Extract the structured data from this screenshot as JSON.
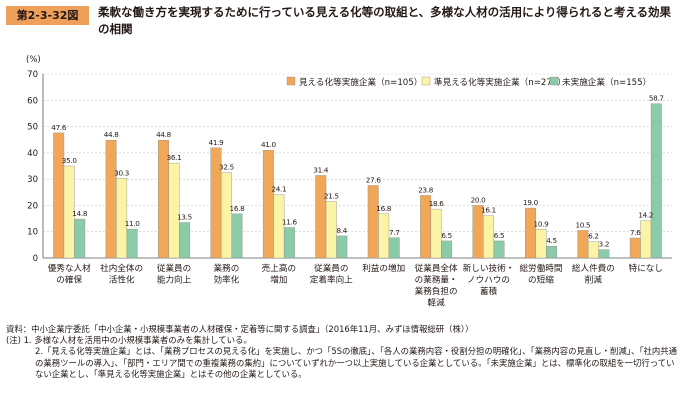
{
  "figure": {
    "number": "第2-3-32図",
    "title": "柔軟な働き方を実現するために行っている見える化等の取組と、多様な人材の活用により得られると考える効果の相関"
  },
  "chart_data": {
    "type": "bar",
    "y_unit": "(%)",
    "ylim": [
      0,
      70
    ],
    "yticks": [
      "0",
      "10",
      "20",
      "30",
      "40",
      "50",
      "60",
      "70"
    ],
    "grid": true,
    "legend_position": "top-right",
    "categories": [
      [
        "優秀な人材",
        "の確保"
      ],
      [
        "社内全体の",
        "活性化"
      ],
      [
        "従業員の",
        "能力向上"
      ],
      [
        "業務の",
        "効率化"
      ],
      [
        "売上高の",
        "増加"
      ],
      [
        "従業員の",
        "定着率向上"
      ],
      [
        "利益の増加"
      ],
      [
        "従業員全体",
        "の業務量・",
        "業務負担の",
        "軽減"
      ],
      [
        "新しい技術・",
        "ノウハウの",
        "蓄積"
      ],
      [
        "総労働時間",
        "の短縮"
      ],
      [
        "総人件費の",
        "削減"
      ],
      [
        "特になし"
      ]
    ],
    "series": [
      {
        "name": "見える化等実施企業（n=105）",
        "color": "#f0a858",
        "values": [
          47.6,
          44.8,
          44.8,
          41.9,
          41.0,
          31.4,
          27.6,
          23.8,
          20.0,
          19.0,
          10.5,
          7.6
        ],
        "labels": [
          "47.6",
          "44.8",
          "44.8",
          "41.9",
          "41.0",
          "31.4",
          "27.6",
          "23.8",
          "20.0",
          "19.0",
          "10.5",
          "7.6"
        ]
      },
      {
        "name": "準見える化等実施企業（n=274）",
        "color": "#fbf3a6",
        "values": [
          35.0,
          30.3,
          36.1,
          32.5,
          24.1,
          21.5,
          16.8,
          18.6,
          16.1,
          10.9,
          6.2,
          14.2
        ],
        "labels": [
          "35.0",
          "30.3",
          "36.1",
          "32.5",
          "24.1",
          "21.5",
          "16.8",
          "18.6",
          "16.1",
          "10.9",
          "6.2",
          "14.2"
        ]
      },
      {
        "name": "未実施企業（n=155）",
        "color": "#8ccba8",
        "values": [
          14.8,
          11.0,
          13.5,
          16.8,
          11.6,
          8.4,
          7.7,
          6.5,
          6.5,
          4.5,
          3.2,
          58.7
        ],
        "labels": [
          "14.8",
          "11.0",
          "13.5",
          "16.8",
          "11.6",
          "8.4",
          "7.7",
          "6.5",
          "6.5",
          "4.5",
          "3.2",
          "58.7"
        ]
      }
    ]
  },
  "notes": {
    "source": "資料：中小企業庁委託「中小企業・小規模事業者の人材確保・定着等に関する調査」（2016年11月、みずほ情報総研（株））",
    "note1": "(注) 1. 多様な人材を活用中の小規模事業者のみを集計している。",
    "note2": "2.「見える化等実施企業」とは、「業務プロセスの見える化」を実施し、かつ「5Sの徹底」、「各人の業務内容・役割分担の明確化」、「業務内容の見直し・削減」、「社内共通の業務ツールの導入」、「部門・エリア間での重複業務の集約」についていずれか一つ以上実施している企業としている。「未実施企業」とは、標準化の取組を一切行っていない企業とし、「準見える化等実施企業」とはその他の企業としている。"
  }
}
